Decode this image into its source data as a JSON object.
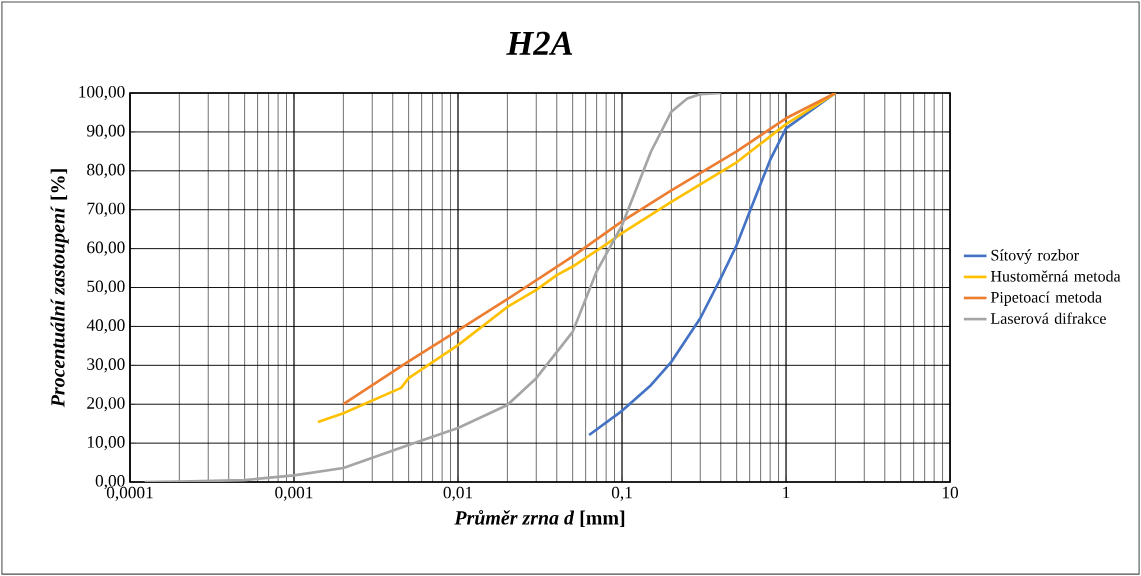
{
  "chart_data": {
    "type": "line",
    "title": "H2A",
    "xlabel": "*Průměr zrna d* [mm]",
    "ylabel": "*Procentuální zastoupení* [%]",
    "log": "x",
    "grid": true,
    "legend": "right",
    "marker": "none",
    "line_style": "solid",
    "xlim": [
      0.0001,
      10
    ],
    "xticks": [
      {
        "value": 0.0001,
        "label": "0,0001"
      },
      {
        "value": 0.001,
        "label": "0,001"
      },
      {
        "value": 0.01,
        "label": "0,01"
      },
      {
        "value": 0.1,
        "label": "0,1"
      },
      1,
      10
    ],
    "ylim": [
      0,
      100
    ],
    "yticks": [
      {
        "value": 0,
        "label": "0,00"
      },
      {
        "value": 10,
        "label": "10,00"
      },
      {
        "value": 20,
        "label": "20,00"
      },
      {
        "value": 30,
        "label": "30,00"
      },
      {
        "value": 40,
        "label": "40,00"
      },
      {
        "value": 50,
        "label": "50,00"
      },
      {
        "value": 60,
        "label": "60,00"
      },
      {
        "value": 70,
        "label": "70,00"
      },
      {
        "value": 80,
        "label": "80,00"
      },
      {
        "value": 90,
        "label": "90,00"
      },
      {
        "value": 100,
        "label": "100,00"
      }
    ],
    "series": [
      {
        "name": "Sítový rozbor",
        "color": "#4472c4",
        "x": [
          0.063,
          0.1,
          0.15,
          0.2,
          0.3,
          0.4,
          0.5,
          0.6,
          0.8,
          1,
          2
        ],
        "values": [
          12.1,
          18.3,
          24.9,
          30.9,
          42.1,
          52.4,
          60.9,
          69.5,
          82.8,
          90.9,
          100
        ]
      },
      {
        "name": "Hustoměrná metoda",
        "color": "#ffc000",
        "x": [
          0.0014,
          0.002,
          0.0045,
          0.005,
          0.01,
          0.02,
          0.03,
          0.04,
          0.05,
          0.08,
          0.1,
          0.2,
          0.5,
          1,
          2
        ],
        "values": [
          15.4,
          17.7,
          24.2,
          26.7,
          35.2,
          45,
          49.4,
          53.2,
          55.4,
          61.1,
          64,
          72,
          82.2,
          92,
          100
        ]
      },
      {
        "name": "Pipetoací metoda",
        "color": "#ed7d31",
        "x": [
          0.002,
          0.005,
          0.01,
          0.02,
          0.05,
          0.1,
          0.2,
          0.5,
          1,
          2
        ],
        "values": [
          20,
          31,
          39,
          47,
          58,
          67,
          75,
          85,
          93.5,
          100
        ]
      },
      {
        "name": "Laserová difrakce",
        "color": "#a5a5a5",
        "x": [
          0.000123,
          0.0002,
          0.0005,
          0.001,
          0.002,
          0.005,
          0.01,
          0.02,
          0.03,
          0.05,
          0.07,
          0.1,
          0.15,
          0.2,
          0.25,
          0.3,
          0.4
        ],
        "values": [
          0,
          0.1,
          0.5,
          1.7,
          3.6,
          9.5,
          13.9,
          19.8,
          26.7,
          38.6,
          54.1,
          66,
          84.9,
          95.2,
          98.6,
          99.7,
          100
        ]
      }
    ]
  }
}
